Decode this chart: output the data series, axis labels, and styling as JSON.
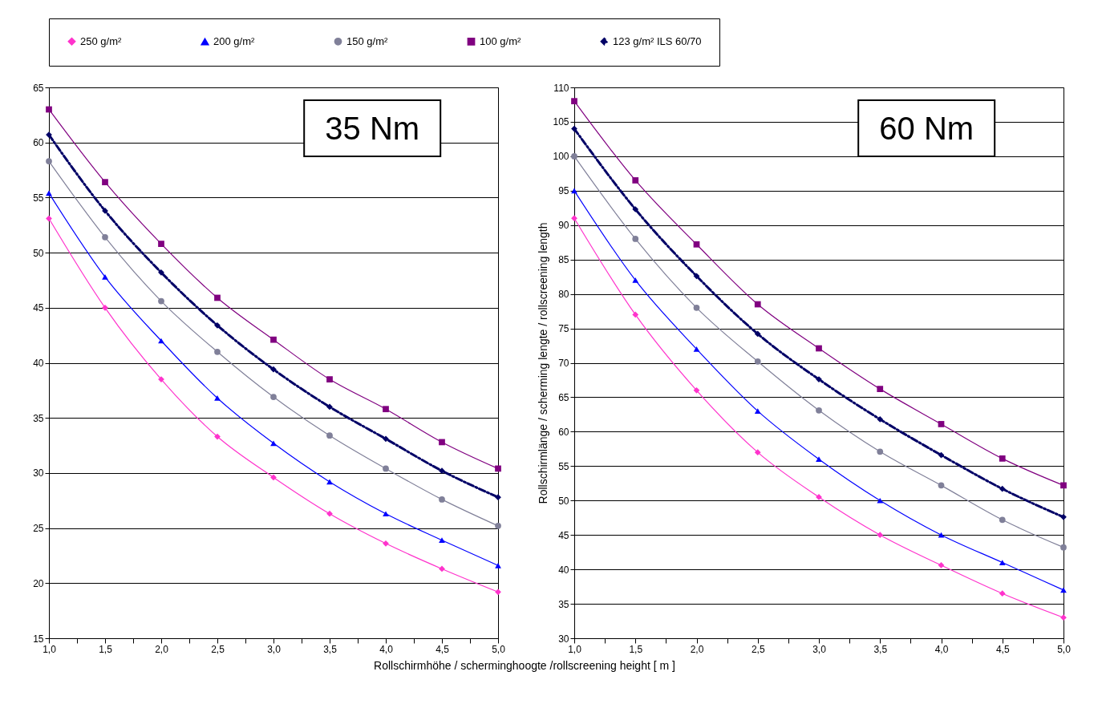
{
  "chart_data": [
    {
      "type": "line",
      "annotations": [
        "35 Nm"
      ],
      "xlabel": "Rollschirmhöhe / scherminghoogte /rollscreening height [ m ]",
      "x": [
        1,
        1.5,
        2,
        2.5,
        3,
        3.5,
        4,
        4.5,
        5
      ],
      "series": [
        {
          "name": "250 g/m²",
          "color": "#ff33cc",
          "marker": "diamond",
          "values": [
            53.1,
            45.0,
            38.5,
            33.3,
            29.6,
            26.3,
            23.6,
            21.3,
            19.2
          ]
        },
        {
          "name": "200 g/m²",
          "color": "#0000ff",
          "marker": "triangle",
          "values": [
            55.4,
            47.8,
            42.0,
            36.8,
            32.7,
            29.2,
            26.3,
            23.9,
            21.6
          ]
        },
        {
          "name": "150 g/m²",
          "color": "#808099",
          "marker": "circle",
          "values": [
            58.3,
            51.4,
            45.6,
            41.0,
            36.9,
            33.4,
            30.4,
            27.6,
            25.2
          ]
        },
        {
          "name": "100 g/m²",
          "color": "#800080",
          "marker": "square",
          "values": [
            63.0,
            56.4,
            50.8,
            45.9,
            42.1,
            38.5,
            35.8,
            32.8,
            30.4
          ]
        },
        {
          "name": "123 g/m² ILS 60/70",
          "color": "#000066",
          "marker": "diamond",
          "line_style": "dashed",
          "values": [
            60.7,
            53.8,
            48.2,
            43.4,
            39.4,
            36.0,
            33.1,
            30.2,
            27.8
          ]
        }
      ],
      "xlim": [
        1,
        5
      ],
      "xticks": [
        {
          "value": 1,
          "label": "1,0"
        },
        {
          "value": 1.25,
          "label": null
        },
        {
          "value": 1.5,
          "label": "1,5"
        },
        {
          "value": 1.75,
          "label": null
        },
        {
          "value": 2,
          "label": "2,0"
        },
        {
          "value": 2.25,
          "label": null
        },
        {
          "value": 2.5,
          "label": "2,5"
        },
        {
          "value": 2.75,
          "label": null
        },
        {
          "value": 3,
          "label": "3,0"
        },
        {
          "value": 3.25,
          "label": null
        },
        {
          "value": 3.5,
          "label": "3,5"
        },
        {
          "value": 3.75,
          "label": null
        },
        {
          "value": 4,
          "label": "4,0"
        },
        {
          "value": 4.25,
          "label": null
        },
        {
          "value": 4.5,
          "label": "4,5"
        },
        {
          "value": 4.75,
          "label": null
        },
        {
          "value": 5,
          "label": "5,0"
        }
      ],
      "ylim": [
        15,
        65
      ],
      "yticks": [
        15,
        20,
        25,
        30,
        35,
        40,
        45,
        50,
        55,
        60,
        65
      ],
      "grid": "y",
      "legend": "top"
    },
    {
      "type": "line",
      "annotations": [
        "60 Nm"
      ],
      "ylabel": "Rollschirmlänge / scherming lengte / rollscreening length",
      "x": [
        1,
        1.5,
        2,
        2.5,
        3,
        3.5,
        4,
        4.5,
        5
      ],
      "series": [
        {
          "name": "250 g/m²",
          "color": "#ff33cc",
          "marker": "diamond",
          "values": [
            91,
            77,
            66,
            57,
            50.5,
            45,
            40.6,
            36.5,
            33
          ]
        },
        {
          "name": "200 g/m²",
          "color": "#0000ff",
          "marker": "triangle",
          "values": [
            95,
            82,
            72,
            63,
            56,
            50,
            45,
            41,
            37
          ]
        },
        {
          "name": "150 g/m²",
          "color": "#808099",
          "marker": "circle",
          "values": [
            100,
            88,
            78,
            70.2,
            63.1,
            57.1,
            52.2,
            47.2,
            43.2
          ]
        },
        {
          "name": "100 g/m²",
          "color": "#800080",
          "marker": "square",
          "values": [
            108,
            96.5,
            87.2,
            78.5,
            72.1,
            66.2,
            61.1,
            56.1,
            52.2
          ]
        },
        {
          "name": "123 g/m² ILS 60/70",
          "color": "#000066",
          "marker": "diamond",
          "line_style": "dashed",
          "values": [
            104,
            92.3,
            82.6,
            74.2,
            67.6,
            61.8,
            56.6,
            51.7,
            47.6
          ]
        }
      ],
      "xlim": [
        1,
        5
      ],
      "xticks": [
        {
          "value": 1,
          "label": "1,0"
        },
        {
          "value": 1.25,
          "label": null
        },
        {
          "value": 1.5,
          "label": "1,5"
        },
        {
          "value": 1.75,
          "label": null
        },
        {
          "value": 2,
          "label": "2,0"
        },
        {
          "value": 2.25,
          "label": null
        },
        {
          "value": 2.5,
          "label": "2,5"
        },
        {
          "value": 2.75,
          "label": null
        },
        {
          "value": 3,
          "label": "3,0"
        },
        {
          "value": 3.25,
          "label": null
        },
        {
          "value": 3.5,
          "label": "3,5"
        },
        {
          "value": 3.75,
          "label": null
        },
        {
          "value": 4,
          "label": "4,0"
        },
        {
          "value": 4.25,
          "label": null
        },
        {
          "value": 4.5,
          "label": "4,5"
        },
        {
          "value": 4.75,
          "label": null
        },
        {
          "value": 5,
          "label": "5,0"
        }
      ],
      "ylim": [
        30,
        110
      ],
      "yticks": [
        30,
        35,
        40,
        45,
        50,
        55,
        60,
        65,
        70,
        75,
        80,
        85,
        90,
        95,
        100,
        105,
        110
      ],
      "grid": "y",
      "legend": "top"
    }
  ]
}
